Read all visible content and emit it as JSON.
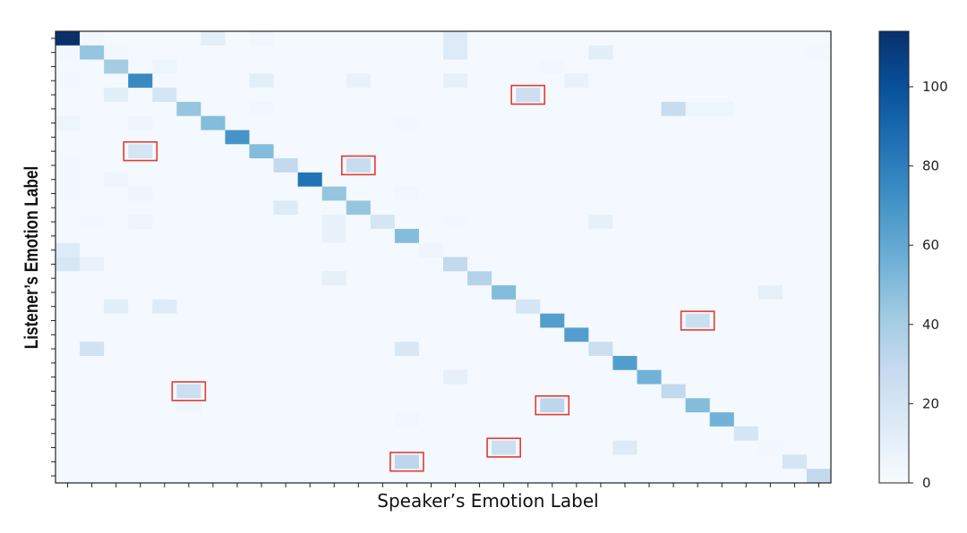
{
  "chart_data": {
    "type": "heatmap",
    "title": "",
    "xlabel": "Speaker’s Emotion Label",
    "ylabel": "Listener’s Emotion Label",
    "n_categories": 32,
    "x_tick_labels_shown": false,
    "y_tick_labels_shown": false,
    "colormap": "Blues",
    "colormap_stops": [
      "#f7fbff",
      "#deebf7",
      "#c6dbef",
      "#9ecae1",
      "#6baed6",
      "#4292c6",
      "#2171b5",
      "#08519c",
      "#08306b"
    ],
    "value_range": [
      0,
      114
    ],
    "colorbar": {
      "ticks": [
        0,
        20,
        40,
        60,
        80,
        100
      ],
      "labels": [
        "0",
        "20",
        "40",
        "60",
        "80",
        "100"
      ]
    },
    "highlight_color": "#e8392f",
    "highlighted_cells": [
      {
        "row": 4,
        "col": 19
      },
      {
        "row": 8,
        "col": 3
      },
      {
        "row": 9,
        "col": 12
      },
      {
        "row": 20,
        "col": 26
      },
      {
        "row": 25,
        "col": 5
      },
      {
        "row": 26,
        "col": 20
      },
      {
        "row": 29,
        "col": 18
      },
      {
        "row": 30,
        "col": 14
      }
    ],
    "values": [
      [
        114,
        3,
        2,
        2,
        2,
        2,
        12,
        2,
        4,
        2,
        2,
        2,
        2,
        2,
        2,
        2,
        15,
        2,
        2,
        2,
        2,
        2,
        2,
        2,
        2,
        2,
        2,
        2,
        2,
        2,
        2,
        2
      ],
      [
        3,
        45,
        3,
        2,
        2,
        2,
        2,
        2,
        2,
        2,
        2,
        2,
        2,
        2,
        2,
        2,
        15,
        2,
        2,
        2,
        2,
        2,
        12,
        2,
        2,
        2,
        2,
        2,
        2,
        2,
        2,
        3
      ],
      [
        2,
        2,
        40,
        2,
        6,
        2,
        2,
        2,
        2,
        2,
        2,
        2,
        2,
        2,
        2,
        2,
        2,
        2,
        2,
        2,
        4,
        2,
        2,
        2,
        2,
        2,
        2,
        2,
        2,
        2,
        2,
        2
      ],
      [
        3,
        2,
        2,
        75,
        2,
        2,
        2,
        2,
        12,
        2,
        2,
        2,
        8,
        2,
        2,
        2,
        10,
        2,
        2,
        2,
        2,
        8,
        2,
        2,
        2,
        2,
        2,
        2,
        2,
        2,
        2,
        2
      ],
      [
        2,
        2,
        12,
        2,
        20,
        2,
        2,
        2,
        2,
        2,
        2,
        2,
        2,
        2,
        2,
        2,
        2,
        2,
        2,
        25,
        2,
        2,
        2,
        2,
        2,
        2,
        2,
        2,
        2,
        2,
        2,
        2
      ],
      [
        2,
        2,
        2,
        2,
        2,
        45,
        2,
        2,
        4,
        2,
        2,
        2,
        2,
        2,
        2,
        2,
        2,
        2,
        2,
        2,
        2,
        2,
        2,
        2,
        2,
        28,
        6,
        6,
        2,
        2,
        2,
        2
      ],
      [
        6,
        2,
        2,
        5,
        2,
        2,
        50,
        2,
        2,
        2,
        2,
        2,
        2,
        2,
        3,
        2,
        2,
        2,
        2,
        2,
        2,
        2,
        2,
        2,
        2,
        2,
        2,
        2,
        2,
        2,
        2,
        2
      ],
      [
        2,
        2,
        2,
        2,
        2,
        2,
        2,
        70,
        2,
        2,
        2,
        2,
        2,
        2,
        2,
        2,
        2,
        2,
        2,
        2,
        2,
        2,
        2,
        2,
        2,
        2,
        2,
        2,
        2,
        2,
        2,
        2
      ],
      [
        2,
        2,
        2,
        20,
        2,
        2,
        2,
        2,
        50,
        2,
        2,
        2,
        2,
        2,
        2,
        2,
        2,
        2,
        2,
        2,
        2,
        2,
        2,
        2,
        2,
        2,
        2,
        2,
        2,
        2,
        2,
        2
      ],
      [
        3,
        2,
        2,
        2,
        2,
        2,
        2,
        2,
        2,
        30,
        2,
        2,
        28,
        2,
        2,
        2,
        2,
        2,
        2,
        2,
        2,
        2,
        2,
        2,
        2,
        2,
        2,
        2,
        2,
        2,
        2,
        2
      ],
      [
        3,
        2,
        5,
        2,
        2,
        2,
        2,
        2,
        2,
        2,
        85,
        2,
        2,
        2,
        2,
        2,
        2,
        2,
        2,
        2,
        2,
        2,
        2,
        2,
        2,
        2,
        2,
        2,
        2,
        2,
        2,
        2
      ],
      [
        3,
        2,
        2,
        5,
        2,
        2,
        2,
        2,
        2,
        2,
        2,
        45,
        2,
        2,
        4,
        2,
        2,
        2,
        2,
        2,
        2,
        2,
        2,
        2,
        2,
        2,
        2,
        2,
        2,
        2,
        2,
        2
      ],
      [
        2,
        2,
        2,
        2,
        2,
        2,
        2,
        2,
        2,
        15,
        2,
        2,
        45,
        2,
        2,
        2,
        2,
        2,
        2,
        2,
        2,
        2,
        2,
        2,
        2,
        2,
        2,
        2,
        2,
        2,
        2,
        2
      ],
      [
        2,
        3,
        2,
        5,
        2,
        2,
        2,
        2,
        2,
        2,
        2,
        8,
        2,
        20,
        2,
        2,
        3,
        2,
        2,
        2,
        2,
        2,
        10,
        2,
        2,
        2,
        2,
        2,
        2,
        2,
        2,
        2
      ],
      [
        2,
        2,
        2,
        2,
        2,
        2,
        2,
        2,
        2,
        2,
        2,
        8,
        2,
        2,
        50,
        2,
        2,
        2,
        2,
        2,
        2,
        2,
        2,
        2,
        2,
        2,
        2,
        2,
        2,
        2,
        2,
        2
      ],
      [
        15,
        2,
        2,
        2,
        2,
        2,
        2,
        2,
        2,
        2,
        2,
        2,
        2,
        2,
        2,
        5,
        2,
        2,
        2,
        2,
        2,
        2,
        2,
        2,
        2,
        2,
        2,
        2,
        2,
        2,
        2,
        2
      ],
      [
        18,
        8,
        2,
        2,
        2,
        2,
        2,
        2,
        2,
        2,
        2,
        2,
        2,
        2,
        2,
        2,
        30,
        2,
        2,
        2,
        2,
        2,
        2,
        2,
        2,
        2,
        2,
        2,
        2,
        2,
        2,
        2
      ],
      [
        2,
        2,
        2,
        2,
        2,
        2,
        2,
        2,
        2,
        2,
        2,
        10,
        2,
        2,
        2,
        2,
        2,
        35,
        2,
        2,
        2,
        2,
        2,
        2,
        2,
        2,
        2,
        2,
        2,
        2,
        2,
        2
      ],
      [
        2,
        2,
        2,
        2,
        2,
        2,
        2,
        2,
        2,
        2,
        2,
        2,
        2,
        2,
        2,
        2,
        2,
        2,
        50,
        2,
        2,
        2,
        2,
        2,
        2,
        2,
        2,
        2,
        2,
        10,
        2,
        2
      ],
      [
        2,
        2,
        12,
        2,
        15,
        2,
        2,
        2,
        2,
        2,
        2,
        2,
        2,
        2,
        2,
        2,
        2,
        2,
        2,
        20,
        2,
        2,
        2,
        2,
        2,
        2,
        2,
        2,
        2,
        2,
        2,
        2
      ],
      [
        2,
        2,
        2,
        2,
        2,
        2,
        2,
        2,
        2,
        2,
        2,
        2,
        2,
        2,
        2,
        2,
        2,
        2,
        2,
        2,
        65,
        2,
        2,
        2,
        2,
        2,
        25,
        2,
        2,
        2,
        2,
        2
      ],
      [
        2,
        2,
        2,
        2,
        2,
        2,
        2,
        2,
        2,
        2,
        2,
        2,
        2,
        2,
        2,
        2,
        2,
        2,
        2,
        2,
        2,
        65,
        2,
        2,
        2,
        2,
        2,
        2,
        2,
        2,
        2,
        2
      ],
      [
        2,
        22,
        2,
        2,
        2,
        2,
        2,
        2,
        2,
        2,
        2,
        2,
        2,
        2,
        18,
        2,
        2,
        2,
        2,
        2,
        2,
        2,
        25,
        2,
        2,
        2,
        2,
        2,
        2,
        2,
        2,
        2
      ],
      [
        2,
        2,
        2,
        2,
        2,
        2,
        2,
        2,
        2,
        2,
        2,
        2,
        2,
        2,
        2,
        2,
        2,
        2,
        2,
        2,
        2,
        2,
        2,
        65,
        2,
        2,
        2,
        2,
        2,
        2,
        2,
        2
      ],
      [
        2,
        2,
        2,
        2,
        2,
        2,
        2,
        2,
        2,
        2,
        2,
        2,
        2,
        2,
        2,
        2,
        10,
        2,
        2,
        2,
        2,
        2,
        2,
        2,
        55,
        2,
        2,
        2,
        2,
        2,
        2,
        2
      ],
      [
        2,
        2,
        2,
        2,
        2,
        25,
        2,
        2,
        2,
        2,
        2,
        2,
        2,
        2,
        2,
        2,
        2,
        2,
        2,
        2,
        2,
        2,
        2,
        2,
        2,
        30,
        2,
        2,
        2,
        2,
        2,
        2
      ],
      [
        2,
        2,
        2,
        2,
        2,
        5,
        2,
        2,
        2,
        2,
        2,
        2,
        2,
        2,
        2,
        2,
        2,
        2,
        2,
        2,
        32,
        2,
        2,
        2,
        2,
        2,
        50,
        2,
        2,
        2,
        2,
        2
      ],
      [
        2,
        2,
        2,
        2,
        2,
        2,
        2,
        2,
        2,
        2,
        2,
        2,
        2,
        2,
        4,
        2,
        2,
        2,
        2,
        2,
        2,
        2,
        2,
        2,
        2,
        2,
        2,
        55,
        2,
        2,
        2,
        2
      ],
      [
        2,
        2,
        2,
        2,
        2,
        2,
        2,
        2,
        2,
        2,
        2,
        2,
        2,
        2,
        2,
        2,
        2,
        2,
        2,
        2,
        2,
        2,
        2,
        2,
        2,
        2,
        2,
        2,
        20,
        2,
        2,
        2
      ],
      [
        2,
        2,
        2,
        2,
        2,
        2,
        2,
        2,
        2,
        2,
        2,
        2,
        2,
        2,
        2,
        2,
        2,
        2,
        25,
        2,
        2,
        2,
        2,
        15,
        2,
        2,
        2,
        2,
        2,
        3,
        2,
        2
      ],
      [
        2,
        2,
        2,
        2,
        2,
        2,
        2,
        2,
        2,
        2,
        2,
        2,
        2,
        2,
        32,
        2,
        2,
        2,
        2,
        2,
        2,
        2,
        2,
        2,
        2,
        2,
        2,
        2,
        2,
        2,
        20,
        2
      ],
      [
        2,
        2,
        2,
        2,
        2,
        2,
        2,
        2,
        2,
        2,
        2,
        2,
        2,
        2,
        2,
        2,
        2,
        2,
        2,
        2,
        2,
        2,
        2,
        2,
        2,
        2,
        2,
        2,
        2,
        2,
        2,
        30
      ]
    ]
  }
}
